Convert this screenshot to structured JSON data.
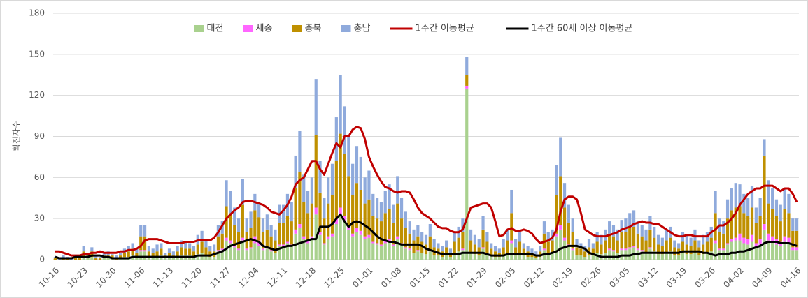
{
  "chart_data": {
    "type": "bar",
    "y_label": "확진자수",
    "categories": [
      "10-16",
      null,
      null,
      null,
      null,
      null,
      null,
      "10-23",
      null,
      null,
      null,
      null,
      null,
      null,
      "10-30",
      null,
      null,
      null,
      null,
      null,
      null,
      "11-06",
      null,
      null,
      null,
      null,
      null,
      null,
      "11-13",
      null,
      null,
      null,
      null,
      null,
      null,
      "11-20",
      null,
      null,
      null,
      null,
      null,
      null,
      "11-27",
      null,
      null,
      null,
      null,
      null,
      null,
      "12-04",
      null,
      null,
      null,
      null,
      null,
      null,
      "12-11",
      null,
      null,
      null,
      null,
      null,
      null,
      "12-18",
      null,
      null,
      null,
      null,
      null,
      null,
      "12-25",
      null,
      null,
      null,
      null,
      null,
      null,
      "01-01",
      null,
      null,
      null,
      null,
      null,
      null,
      "01-08",
      null,
      null,
      null,
      null,
      null,
      null,
      "01-15",
      null,
      null,
      null,
      null,
      null,
      null,
      "01-22",
      null,
      null,
      null,
      null,
      null,
      null,
      "01-29",
      null,
      null,
      null,
      null,
      null,
      null,
      "02-05",
      null,
      null,
      null,
      null,
      null,
      null,
      "02-12",
      null,
      null,
      null,
      null,
      null,
      null,
      "02-19",
      null,
      null,
      null,
      null,
      null,
      null,
      "02-26",
      null,
      null,
      null,
      null,
      null,
      null,
      "03-05",
      null,
      null,
      null,
      null,
      null,
      null,
      "03-12",
      null,
      null,
      null,
      null,
      null,
      null,
      "03-19",
      null,
      null,
      null,
      null,
      null,
      null,
      "03-26",
      null,
      null,
      null,
      null,
      null,
      null,
      "04-02",
      null,
      null,
      null,
      null,
      null,
      null,
      "04-09",
      null,
      null,
      null,
      null,
      null,
      null,
      "04-16"
    ],
    "series": [
      {
        "name": "대전",
        "color": "#a9d18e",
        "values": [
          0,
          0,
          0,
          0,
          0,
          0,
          0,
          2,
          1,
          2,
          0,
          0,
          1,
          1,
          1,
          0,
          1,
          2,
          2,
          3,
          2,
          6,
          6,
          2,
          2,
          2,
          3,
          1,
          2,
          1,
          2,
          3,
          3,
          3,
          2,
          4,
          5,
          3,
          2,
          2,
          6,
          7,
          14,
          12,
          9,
          7,
          14,
          7,
          8,
          12,
          10,
          7,
          8,
          6,
          5,
          10,
          10,
          12,
          10,
          19,
          23,
          15,
          12,
          15,
          33,
          18,
          11,
          15,
          17,
          26,
          33,
          28,
          22,
          17,
          20,
          18,
          15,
          16,
          12,
          11,
          10,
          12,
          13,
          10,
          15,
          11,
          8,
          7,
          5,
          6,
          5,
          4,
          6,
          3,
          3,
          2,
          3,
          2,
          5,
          6,
          7,
          125,
          5,
          4,
          3,
          8,
          5,
          3,
          2,
          2,
          3,
          5,
          12,
          3,
          5,
          3,
          2,
          2,
          1,
          2,
          7,
          5,
          5,
          17,
          22,
          14,
          10,
          7,
          3,
          3,
          2,
          3,
          3,
          5,
          4,
          5,
          7,
          6,
          5,
          7,
          7,
          8,
          9,
          7,
          6,
          5,
          8,
          6,
          4,
          4,
          5,
          6,
          3,
          3,
          5,
          4,
          4,
          5,
          3,
          4,
          5,
          6,
          12,
          7,
          7,
          11,
          13,
          14,
          14,
          12,
          11,
          13,
          9,
          11,
          22,
          14,
          13,
          11,
          10,
          13,
          12,
          7,
          7
        ]
      },
      {
        "name": "세종",
        "color": "#ff66ff",
        "values": [
          0,
          0,
          0,
          0,
          0,
          0,
          0,
          0,
          0,
          0,
          0,
          0,
          0,
          0,
          0,
          0,
          0,
          0,
          0,
          0,
          0,
          1,
          1,
          0,
          0,
          0,
          0,
          0,
          0,
          0,
          0,
          0,
          0,
          0,
          0,
          0,
          0,
          0,
          0,
          0,
          1,
          1,
          2,
          2,
          1,
          1,
          2,
          1,
          1,
          5,
          4,
          1,
          1,
          1,
          0,
          1,
          1,
          1,
          1,
          3,
          3,
          2,
          2,
          2,
          5,
          2,
          1,
          2,
          2,
          4,
          5,
          4,
          3,
          2,
          3,
          3,
          2,
          2,
          1,
          1,
          1,
          2,
          2,
          1,
          2,
          1,
          1,
          1,
          0,
          1,
          0,
          0,
          1,
          0,
          0,
          0,
          0,
          0,
          0,
          0,
          1,
          2,
          0,
          0,
          0,
          1,
          0,
          0,
          0,
          0,
          0,
          0,
          2,
          0,
          0,
          0,
          0,
          0,
          0,
          0,
          1,
          0,
          0,
          2,
          3,
          2,
          1,
          1,
          0,
          0,
          0,
          0,
          0,
          0,
          0,
          0,
          1,
          1,
          0,
          1,
          1,
          1,
          1,
          1,
          1,
          0,
          1,
          0,
          0,
          0,
          0,
          0,
          0,
          0,
          0,
          0,
          0,
          0,
          0,
          0,
          0,
          0,
          2,
          1,
          1,
          1,
          2,
          2,
          5,
          4,
          4,
          5,
          3,
          4,
          4,
          5,
          4,
          4,
          3,
          4,
          4,
          2,
          2
        ]
      },
      {
        "name": "충북",
        "color": "#bf9000",
        "values": [
          1,
          0,
          1,
          1,
          0,
          1,
          1,
          4,
          2,
          4,
          1,
          1,
          2,
          2,
          2,
          1,
          2,
          3,
          4,
          5,
          3,
          10,
          10,
          4,
          3,
          4,
          5,
          2,
          3,
          2,
          4,
          6,
          5,
          5,
          4,
          7,
          8,
          6,
          4,
          4,
          10,
          11,
          23,
          20,
          15,
          12,
          24,
          12,
          14,
          19,
          17,
          12,
          13,
          10,
          9,
          16,
          16,
          19,
          17,
          30,
          38,
          25,
          20,
          24,
          53,
          29,
          18,
          24,
          28,
          42,
          54,
          45,
          36,
          28,
          33,
          30,
          24,
          26,
          19,
          18,
          17,
          20,
          22,
          16,
          24,
          18,
          14,
          11,
          9,
          10,
          8,
          7,
          10,
          6,
          5,
          4,
          6,
          3,
          8,
          10,
          12,
          8,
          9,
          7,
          6,
          13,
          8,
          5,
          4,
          3,
          6,
          9,
          20,
          6,
          8,
          5,
          4,
          3,
          2,
          4,
          11,
          8,
          9,
          28,
          36,
          22,
          16,
          12,
          6,
          5,
          4,
          6,
          5,
          8,
          7,
          9,
          11,
          10,
          9,
          12,
          12,
          14,
          14,
          11,
          10,
          9,
          13,
          10,
          7,
          6,
          9,
          10,
          6,
          5,
          8,
          7,
          6,
          9,
          6,
          7,
          8,
          10,
          20,
          12,
          11,
          18,
          21,
          22,
          20,
          18,
          17,
          20,
          15,
          17,
          50,
          22,
          20,
          17,
          15,
          20,
          18,
          12,
          12
        ]
      },
      {
        "name": "충남",
        "color": "#8faadc",
        "values": [
          1,
          1,
          2,
          1,
          1,
          2,
          1,
          4,
          1,
          3,
          2,
          1,
          2,
          3,
          1,
          2,
          2,
          3,
          4,
          4,
          3,
          8,
          8,
          4,
          3,
          5,
          4,
          2,
          3,
          3,
          4,
          5,
          5,
          4,
          4,
          7,
          8,
          5,
          4,
          5,
          8,
          9,
          19,
          16,
          13,
          10,
          19,
          10,
          12,
          12,
          11,
          10,
          11,
          8,
          8,
          13,
          13,
          16,
          14,
          24,
          30,
          20,
          16,
          19,
          41,
          23,
          15,
          19,
          23,
          32,
          43,
          35,
          29,
          23,
          27,
          24,
          19,
          21,
          16,
          15,
          14,
          16,
          18,
          13,
          20,
          15,
          12,
          9,
          8,
          8,
          7,
          7,
          9,
          6,
          4,
          4,
          5,
          3,
          7,
          8,
          10,
          13,
          8,
          7,
          6,
          10,
          7,
          4,
          4,
          3,
          6,
          8,
          17,
          6,
          7,
          4,
          4,
          3,
          3,
          4,
          9,
          7,
          8,
          22,
          28,
          18,
          13,
          10,
          6,
          4,
          4,
          6,
          4,
          7,
          7,
          8,
          9,
          8,
          8,
          9,
          10,
          11,
          12,
          9,
          8,
          8,
          10,
          8,
          7,
          6,
          8,
          8,
          5,
          4,
          7,
          7,
          6,
          8,
          5,
          7,
          7,
          8,
          16,
          10,
          9,
          14,
          16,
          18,
          16,
          14,
          13,
          16,
          11,
          13,
          12,
          17,
          15,
          12,
          12,
          15,
          14,
          9,
          9
        ]
      },
      {
        "name": "1주간 이동평균",
        "color": "#c00000",
        "kind": "line",
        "values": [
          6,
          6,
          5,
          4,
          3,
          3,
          3,
          4,
          4,
          5,
          5,
          6,
          5,
          5,
          5,
          5,
          6,
          6,
          7,
          7,
          8,
          10,
          14,
          15,
          15,
          15,
          14,
          13,
          12,
          12,
          12,
          12,
          13,
          13,
          13,
          14,
          14,
          14,
          14,
          16,
          20,
          25,
          30,
          33,
          36,
          38,
          42,
          43,
          43,
          42,
          41,
          40,
          38,
          35,
          34,
          33,
          36,
          40,
          46,
          55,
          58,
          60,
          66,
          72,
          72,
          66,
          62,
          70,
          78,
          85,
          82,
          90,
          90,
          95,
          97,
          96,
          88,
          75,
          68,
          62,
          57,
          53,
          52,
          50,
          49,
          50,
          50,
          49,
          44,
          38,
          34,
          32,
          30,
          27,
          24,
          23,
          23,
          21,
          20,
          20,
          22,
          30,
          38,
          39,
          40,
          41,
          41,
          38,
          28,
          17,
          18,
          22,
          23,
          21,
          21,
          22,
          21,
          19,
          15,
          12,
          13,
          14,
          16,
          22,
          35,
          44,
          46,
          46,
          44,
          34,
          22,
          20,
          18,
          17,
          17,
          17,
          18,
          19,
          20,
          22,
          23,
          24,
          26,
          27,
          28,
          27,
          27,
          26,
          26,
          24,
          22,
          20,
          18,
          17,
          17,
          18,
          18,
          17,
          17,
          17,
          17,
          20,
          22,
          25,
          25,
          27,
          30,
          34,
          40,
          44,
          48,
          50,
          52,
          52,
          54,
          54,
          54,
          52,
          50,
          52,
          52,
          48,
          42
        ]
      },
      {
        "name": "1주간 60세 이상 이동평균",
        "color": "#000000",
        "kind": "line",
        "values": [
          2,
          1,
          1,
          1,
          1,
          2,
          2,
          2,
          2,
          3,
          3,
          3,
          2,
          2,
          1,
          1,
          1,
          1,
          1,
          2,
          2,
          2,
          2,
          2,
          2,
          2,
          2,
          2,
          2,
          2,
          2,
          2,
          2,
          2,
          2,
          3,
          3,
          3,
          3,
          4,
          5,
          6,
          8,
          10,
          11,
          12,
          13,
          14,
          15,
          14,
          13,
          10,
          9,
          8,
          7,
          8,
          9,
          10,
          10,
          11,
          12,
          13,
          14,
          15,
          15,
          24,
          24,
          24,
          26,
          30,
          33,
          28,
          24,
          27,
          28,
          27,
          25,
          23,
          20,
          17,
          15,
          14,
          13,
          13,
          12,
          11,
          11,
          11,
          11,
          11,
          10,
          8,
          7,
          6,
          5,
          4,
          4,
          4,
          4,
          4,
          5,
          5,
          5,
          5,
          5,
          5,
          4,
          3,
          3,
          3,
          3,
          4,
          4,
          4,
          4,
          4,
          4,
          4,
          3,
          3,
          4,
          4,
          5,
          6,
          8,
          9,
          10,
          10,
          10,
          9,
          8,
          5,
          4,
          3,
          2,
          2,
          2,
          2,
          2,
          3,
          3,
          3,
          4,
          4,
          5,
          5,
          5,
          5,
          5,
          5,
          5,
          5,
          5,
          5,
          6,
          6,
          6,
          6,
          6,
          5,
          5,
          4,
          3,
          4,
          4,
          4,
          5,
          5,
          6,
          6,
          7,
          8,
          9,
          10,
          12,
          13,
          13,
          13,
          12,
          12,
          12,
          11,
          10
        ]
      }
    ],
    "ylim": [
      0,
      180
    ],
    "yticks": [
      0,
      30,
      60,
      90,
      120,
      150,
      180
    ],
    "grid": true,
    "legend": "top"
  }
}
